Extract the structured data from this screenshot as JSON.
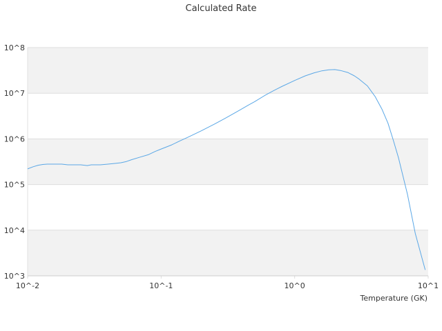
{
  "chart_data": {
    "type": "line",
    "title": "Calculated Rate",
    "xlabel": "Temperature (GK)",
    "ylabel": "",
    "x_scale": "log",
    "y_scale": "log",
    "xlim": [
      0.01,
      10
    ],
    "ylim": [
      1000,
      100000000
    ],
    "x_ticks": [
      {
        "value": 0.01,
        "label": "10^-2"
      },
      {
        "value": 0.1,
        "label": "10^-1"
      },
      {
        "value": 1,
        "label": "10^0"
      },
      {
        "value": 10,
        "label": "10^1"
      }
    ],
    "y_ticks": [
      {
        "value": 1000,
        "label": "10^3"
      },
      {
        "value": 10000,
        "label": "10^4"
      },
      {
        "value": 100000,
        "label": "10^5"
      },
      {
        "value": 1000000,
        "label": "10^6"
      },
      {
        "value": 10000000,
        "label": "10^7"
      },
      {
        "value": 100000000,
        "label": "10^8"
      }
    ],
    "grid": true,
    "alternating_bands": true,
    "legend": "none",
    "colors": {
      "line": "#5aa7e6",
      "band": "#f2f2f2",
      "grid": "#dddddd",
      "text": "#333333"
    },
    "series": [
      {
        "x": [
          0.01,
          0.011,
          0.012,
          0.013,
          0.014,
          0.016,
          0.018,
          0.02,
          0.022,
          0.025,
          0.028,
          0.03,
          0.035,
          0.04,
          0.045,
          0.05,
          0.055,
          0.06,
          0.07,
          0.08,
          0.09,
          0.1,
          0.12,
          0.14,
          0.16,
          0.2,
          0.25,
          0.3,
          0.35,
          0.4,
          0.45,
          0.5,
          0.6,
          0.7,
          0.8,
          1.0,
          1.2,
          1.4,
          1.6,
          1.8,
          2.0,
          2.2,
          2.5,
          2.8,
          3.0,
          3.5,
          4.0,
          4.5,
          5.0,
          5.5,
          6.0,
          7.0,
          8.0,
          9.5
        ],
        "y": [
          220000,
          245000,
          265000,
          275000,
          280000,
          280000,
          280000,
          270000,
          270000,
          270000,
          260000,
          270000,
          270000,
          280000,
          290000,
          300000,
          320000,
          350000,
          400000,
          450000,
          530000,
          600000,
          740000,
          920000,
          1100000,
          1500000,
          2100000,
          2800000,
          3600000,
          4500000,
          5500000,
          6500000,
          9000000,
          11500000,
          14000000,
          19000000,
          24000000,
          28000000,
          31000000,
          32500000,
          33000000,
          31500000,
          28500000,
          24000000,
          21000000,
          14500000,
          8500000,
          4500000,
          2200000,
          900000,
          380000,
          60000,
          8500,
          1350
        ]
      }
    ]
  }
}
